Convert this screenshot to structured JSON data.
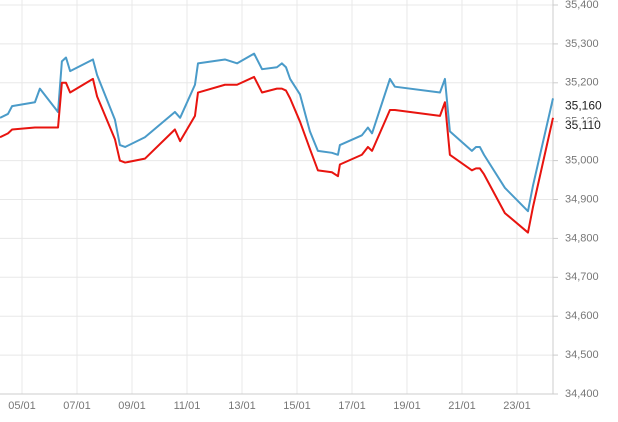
{
  "chart_data": {
    "type": "line",
    "x": [
      4.2,
      4.49,
      4.64,
      5.47,
      5.65,
      6.31,
      6.45,
      6.6,
      6.75,
      7.58,
      7.73,
      8.38,
      8.56,
      8.75,
      9.47,
      10.56,
      10.75,
      11.29,
      11.4,
      12.38,
      12.82,
      13.44,
      13.73,
      14.27,
      14.45,
      14.6,
      14.75,
      15.11,
      15.47,
      15.76,
      16.27,
      16.49,
      16.56,
      17.36,
      17.58,
      17.73,
      18.38,
      18.56,
      20.2,
      20.38,
      20.56,
      21.36,
      21.51,
      21.65,
      21.8,
      22.56,
      23.4,
      23.58,
      24.31
    ],
    "series": [
      {
        "color": "#4a9bc9",
        "values": [
          35110,
          35120,
          35140,
          35150,
          35185,
          35125,
          35255,
          35265,
          35230,
          35260,
          35220,
          35105,
          35040,
          35035,
          35060,
          35125,
          35110,
          35195,
          35250,
          35260,
          35250,
          35275,
          35235,
          35240,
          35250,
          35240,
          35210,
          35170,
          35075,
          35025,
          35020,
          35015,
          35040,
          35065,
          35085,
          35070,
          35210,
          35190,
          35175,
          35210,
          35075,
          35025,
          35035,
          35035,
          35015,
          34930,
          34870,
          34935,
          35160
        ],
        "value_labels": [
          null,
          null,
          null,
          null,
          null,
          null,
          null,
          null,
          null,
          null,
          null,
          null,
          null,
          null,
          null,
          null,
          null,
          null,
          null,
          null,
          null,
          null,
          null,
          null,
          null,
          null,
          null,
          null,
          null,
          null,
          null,
          null,
          null,
          null,
          null,
          null,
          null,
          null,
          null,
          null,
          null,
          null,
          null,
          null,
          null,
          null,
          null,
          null,
          "35,160"
        ]
      },
      {
        "color": "#e8140f",
        "values": [
          35060,
          35070,
          35080,
          35085,
          35085,
          35085,
          35200,
          35200,
          35175,
          35210,
          35165,
          35055,
          35000,
          34995,
          35005,
          35080,
          35050,
          35115,
          35175,
          35195,
          35195,
          35215,
          35175,
          35185,
          35185,
          35180,
          35160,
          35100,
          35030,
          34975,
          34970,
          34960,
          34990,
          35015,
          35035,
          35025,
          35130,
          35130,
          35115,
          35150,
          35015,
          34975,
          34980,
          34980,
          34965,
          34865,
          34815,
          34880,
          35110
        ],
        "value_labels": [
          null,
          null,
          null,
          null,
          null,
          null,
          null,
          null,
          null,
          null,
          null,
          null,
          null,
          null,
          null,
          null,
          null,
          null,
          null,
          null,
          null,
          null,
          null,
          null,
          null,
          null,
          null,
          null,
          null,
          null,
          null,
          null,
          null,
          null,
          null,
          null,
          null,
          null,
          null,
          null,
          null,
          null,
          null,
          null,
          null,
          null,
          null,
          null,
          "35,110"
        ]
      }
    ],
    "xlim": [
      4.2,
      24.31
    ],
    "xticks": [
      {
        "value": 5,
        "label": "05/01"
      },
      {
        "value": 7,
        "label": "07/01"
      },
      {
        "value": 9,
        "label": "09/01"
      },
      {
        "value": 11,
        "label": "11/01"
      },
      {
        "value": 13,
        "label": "13/01"
      },
      {
        "value": 15,
        "label": "15/01"
      },
      {
        "value": 17,
        "label": "17/01"
      },
      {
        "value": 19,
        "label": "19/01"
      },
      {
        "value": 21,
        "label": "21/01"
      },
      {
        "value": 23,
        "label": "23/01"
      }
    ],
    "ylim": [
      34400,
      35400
    ],
    "yticks": [
      {
        "value": 34400,
        "label": "34,400"
      },
      {
        "value": 34500,
        "label": "34,500"
      },
      {
        "value": 34600,
        "label": "34,600"
      },
      {
        "value": 34700,
        "label": "34,700"
      },
      {
        "value": 34800,
        "label": "34,800"
      },
      {
        "value": 34900,
        "label": "34,900"
      },
      {
        "value": 35000,
        "label": "35,000"
      },
      {
        "value": 35100,
        "label": "35,100"
      },
      {
        "value": 35200,
        "label": "35,200"
      },
      {
        "value": 35300,
        "label": "35,300"
      },
      {
        "value": 35400,
        "label": "35,400"
      }
    ],
    "grid": true
  }
}
